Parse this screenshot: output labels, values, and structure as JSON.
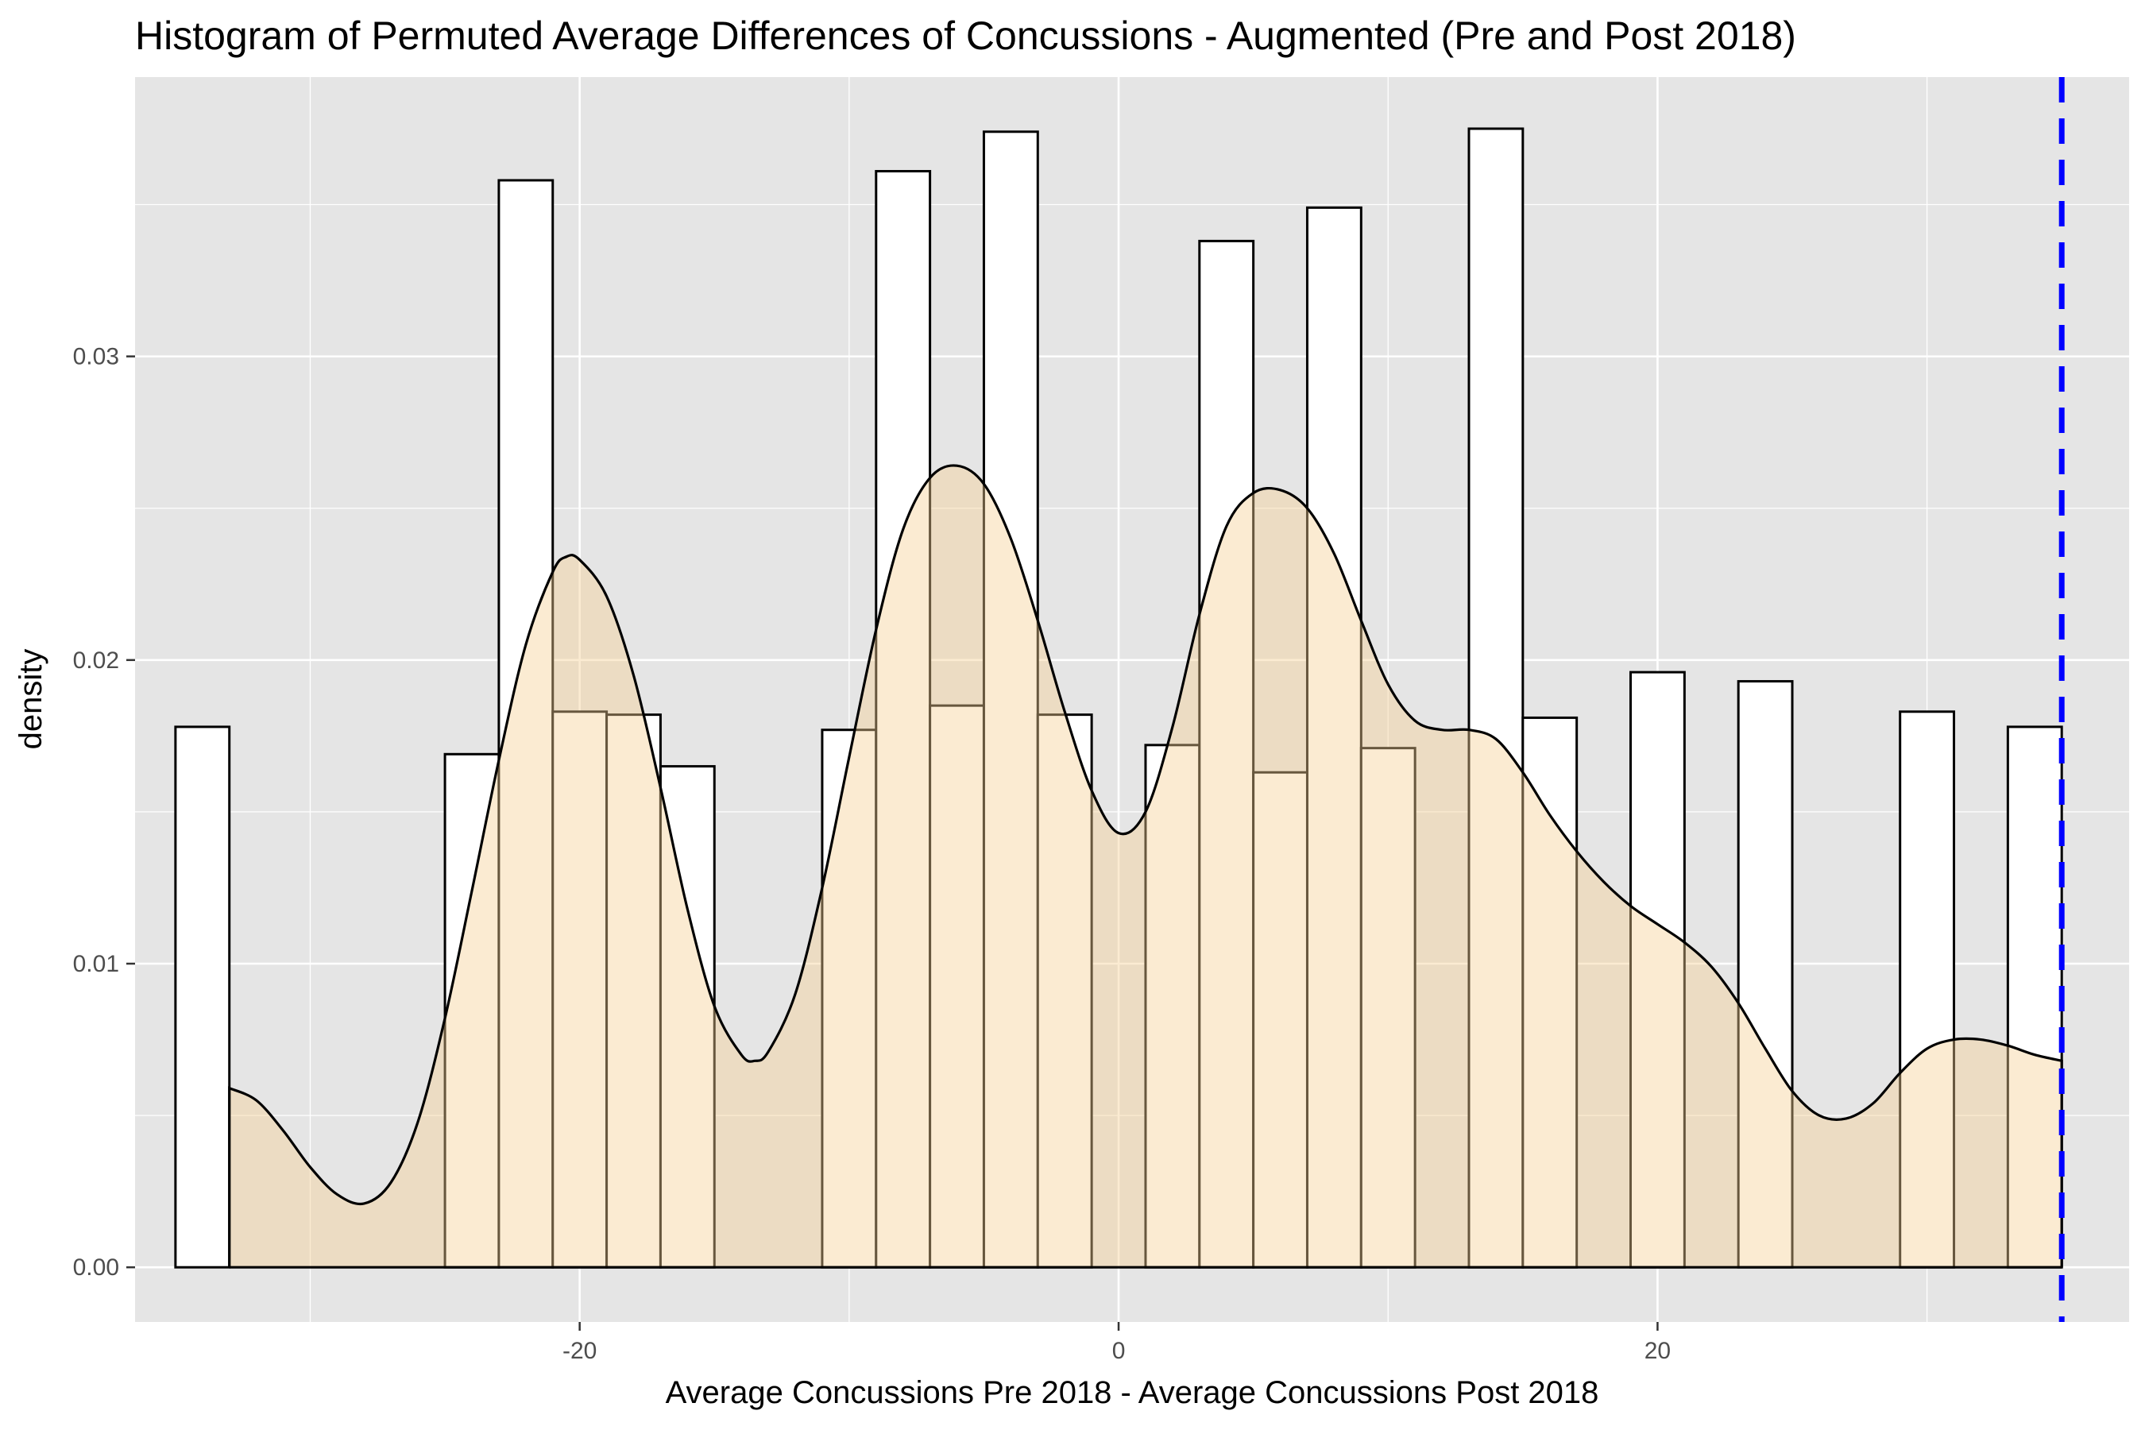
{
  "chart_data": {
    "type": "bar",
    "title": "Histogram of Permuted Average Differences of Concussions - Augmented (Pre and Post 2018)",
    "xlabel": "Average Concussions Pre 2018 - Average Concussions Post 2018",
    "ylabel": "density",
    "xlim": [
      -36.5,
      37.5
    ],
    "ylim": [
      -0.0018,
      0.0392
    ],
    "x_ticks": [
      {
        "value": -20,
        "label": "-20"
      },
      {
        "value": 0,
        "label": "0"
      },
      {
        "value": 20,
        "label": "20"
      }
    ],
    "y_ticks": [
      {
        "value": 0.0,
        "label": "0.00"
      },
      {
        "value": 0.01,
        "label": "0.01"
      },
      {
        "value": 0.02,
        "label": "0.02"
      },
      {
        "value": 0.03,
        "label": "0.03"
      }
    ],
    "grid": true,
    "histogram": {
      "bin_width": 2,
      "bins": [
        {
          "x_start": -35,
          "x_end": -33,
          "density": 0.0178
        },
        {
          "x_start": -25,
          "x_end": -23,
          "density": 0.0169
        },
        {
          "x_start": -23,
          "x_end": -21,
          "density": 0.0358
        },
        {
          "x_start": -21,
          "x_end": -19,
          "density": 0.0183
        },
        {
          "x_start": -19,
          "x_end": -17,
          "density": 0.0182
        },
        {
          "x_start": -17,
          "x_end": -15,
          "density": 0.0165
        },
        {
          "x_start": -11,
          "x_end": -9,
          "density": 0.0177
        },
        {
          "x_start": -9,
          "x_end": -7,
          "density": 0.0361
        },
        {
          "x_start": -7,
          "x_end": -5,
          "density": 0.0185
        },
        {
          "x_start": -5,
          "x_end": -3,
          "density": 0.0374
        },
        {
          "x_start": -3,
          "x_end": -1,
          "density": 0.0182
        },
        {
          "x_start": 1,
          "x_end": 3,
          "density": 0.0172
        },
        {
          "x_start": 3,
          "x_end": 5,
          "density": 0.0338
        },
        {
          "x_start": 5,
          "x_end": 7,
          "density": 0.0163
        },
        {
          "x_start": 7,
          "x_end": 9,
          "density": 0.0349
        },
        {
          "x_start": 9,
          "x_end": 11,
          "density": 0.0171
        },
        {
          "x_start": 13,
          "x_end": 15,
          "density": 0.0375
        },
        {
          "x_start": 15,
          "x_end": 17,
          "density": 0.0181
        },
        {
          "x_start": 19,
          "x_end": 21,
          "density": 0.0196
        },
        {
          "x_start": 23,
          "x_end": 25,
          "density": 0.0193
        },
        {
          "x_start": 29,
          "x_end": 31,
          "density": 0.0183
        },
        {
          "x_start": 33,
          "x_end": 35,
          "density": 0.0178
        }
      ],
      "bar_fill": "#ffffff",
      "bar_stroke": "#000000"
    },
    "density_curve": {
      "fill": "#f5cf93",
      "fill_opacity": 0.42,
      "stroke": "#000000",
      "points": [
        {
          "x": -33.0,
          "y": 0.0059
        },
        {
          "x": -32.0,
          "y": 0.0055
        },
        {
          "x": -31.0,
          "y": 0.0045
        },
        {
          "x": -30.0,
          "y": 0.0033
        },
        {
          "x": -29.0,
          "y": 0.0024
        },
        {
          "x": -28.0,
          "y": 0.0021
        },
        {
          "x": -27.0,
          "y": 0.0028
        },
        {
          "x": -26.0,
          "y": 0.0048
        },
        {
          "x": -25.0,
          "y": 0.0082
        },
        {
          "x": -24.0,
          "y": 0.0124
        },
        {
          "x": -23.0,
          "y": 0.0167
        },
        {
          "x": -22.0,
          "y": 0.0205
        },
        {
          "x": -21.0,
          "y": 0.0229
        },
        {
          "x": -20.5,
          "y": 0.0234
        },
        {
          "x": -20.0,
          "y": 0.0233
        },
        {
          "x": -19.0,
          "y": 0.0221
        },
        {
          "x": -18.0,
          "y": 0.0195
        },
        {
          "x": -17.0,
          "y": 0.0158
        },
        {
          "x": -16.0,
          "y": 0.0118
        },
        {
          "x": -15.0,
          "y": 0.0086
        },
        {
          "x": -14.0,
          "y": 0.007
        },
        {
          "x": -13.5,
          "y": 0.0068
        },
        {
          "x": -13.0,
          "y": 0.0071
        },
        {
          "x": -12.0,
          "y": 0.009
        },
        {
          "x": -11.0,
          "y": 0.0125
        },
        {
          "x": -10.0,
          "y": 0.0168
        },
        {
          "x": -9.0,
          "y": 0.021
        },
        {
          "x": -8.0,
          "y": 0.0243
        },
        {
          "x": -7.0,
          "y": 0.026
        },
        {
          "x": -6.0,
          "y": 0.0264
        },
        {
          "x": -5.0,
          "y": 0.0258
        },
        {
          "x": -4.0,
          "y": 0.024
        },
        {
          "x": -3.0,
          "y": 0.0213
        },
        {
          "x": -2.0,
          "y": 0.0183
        },
        {
          "x": -1.0,
          "y": 0.0157
        },
        {
          "x": 0.0,
          "y": 0.0143
        },
        {
          "x": 1.0,
          "y": 0.015
        },
        {
          "x": 2.0,
          "y": 0.0178
        },
        {
          "x": 3.0,
          "y": 0.0215
        },
        {
          "x": 4.0,
          "y": 0.0244
        },
        {
          "x": 5.0,
          "y": 0.0255
        },
        {
          "x": 6.0,
          "y": 0.0256
        },
        {
          "x": 7.0,
          "y": 0.025
        },
        {
          "x": 8.0,
          "y": 0.0235
        },
        {
          "x": 9.0,
          "y": 0.0213
        },
        {
          "x": 10.0,
          "y": 0.0192
        },
        {
          "x": 11.0,
          "y": 0.018
        },
        {
          "x": 12.0,
          "y": 0.0177
        },
        {
          "x": 13.0,
          "y": 0.0177
        },
        {
          "x": 14.0,
          "y": 0.0174
        },
        {
          "x": 15.0,
          "y": 0.0163
        },
        {
          "x": 16.0,
          "y": 0.0149
        },
        {
          "x": 17.0,
          "y": 0.0137
        },
        {
          "x": 18.0,
          "y": 0.0127
        },
        {
          "x": 19.0,
          "y": 0.0119
        },
        {
          "x": 20.0,
          "y": 0.0113
        },
        {
          "x": 21.0,
          "y": 0.0107
        },
        {
          "x": 22.0,
          "y": 0.0099
        },
        {
          "x": 23.0,
          "y": 0.0087
        },
        {
          "x": 24.0,
          "y": 0.0072
        },
        {
          "x": 25.0,
          "y": 0.0058
        },
        {
          "x": 26.0,
          "y": 0.005
        },
        {
          "x": 27.0,
          "y": 0.0049
        },
        {
          "x": 28.0,
          "y": 0.0054
        },
        {
          "x": 29.0,
          "y": 0.0064
        },
        {
          "x": 30.0,
          "y": 0.0072
        },
        {
          "x": 31.0,
          "y": 0.0075
        },
        {
          "x": 32.0,
          "y": 0.0075
        },
        {
          "x": 33.0,
          "y": 0.0073
        },
        {
          "x": 34.0,
          "y": 0.007
        },
        {
          "x": 35.0,
          "y": 0.0068
        }
      ]
    },
    "reference_line": {
      "x": 35.0,
      "color": "#0000ff",
      "style": "dashed"
    },
    "panel_background": "#e5e5e5",
    "grid_color": "#ffffff"
  }
}
